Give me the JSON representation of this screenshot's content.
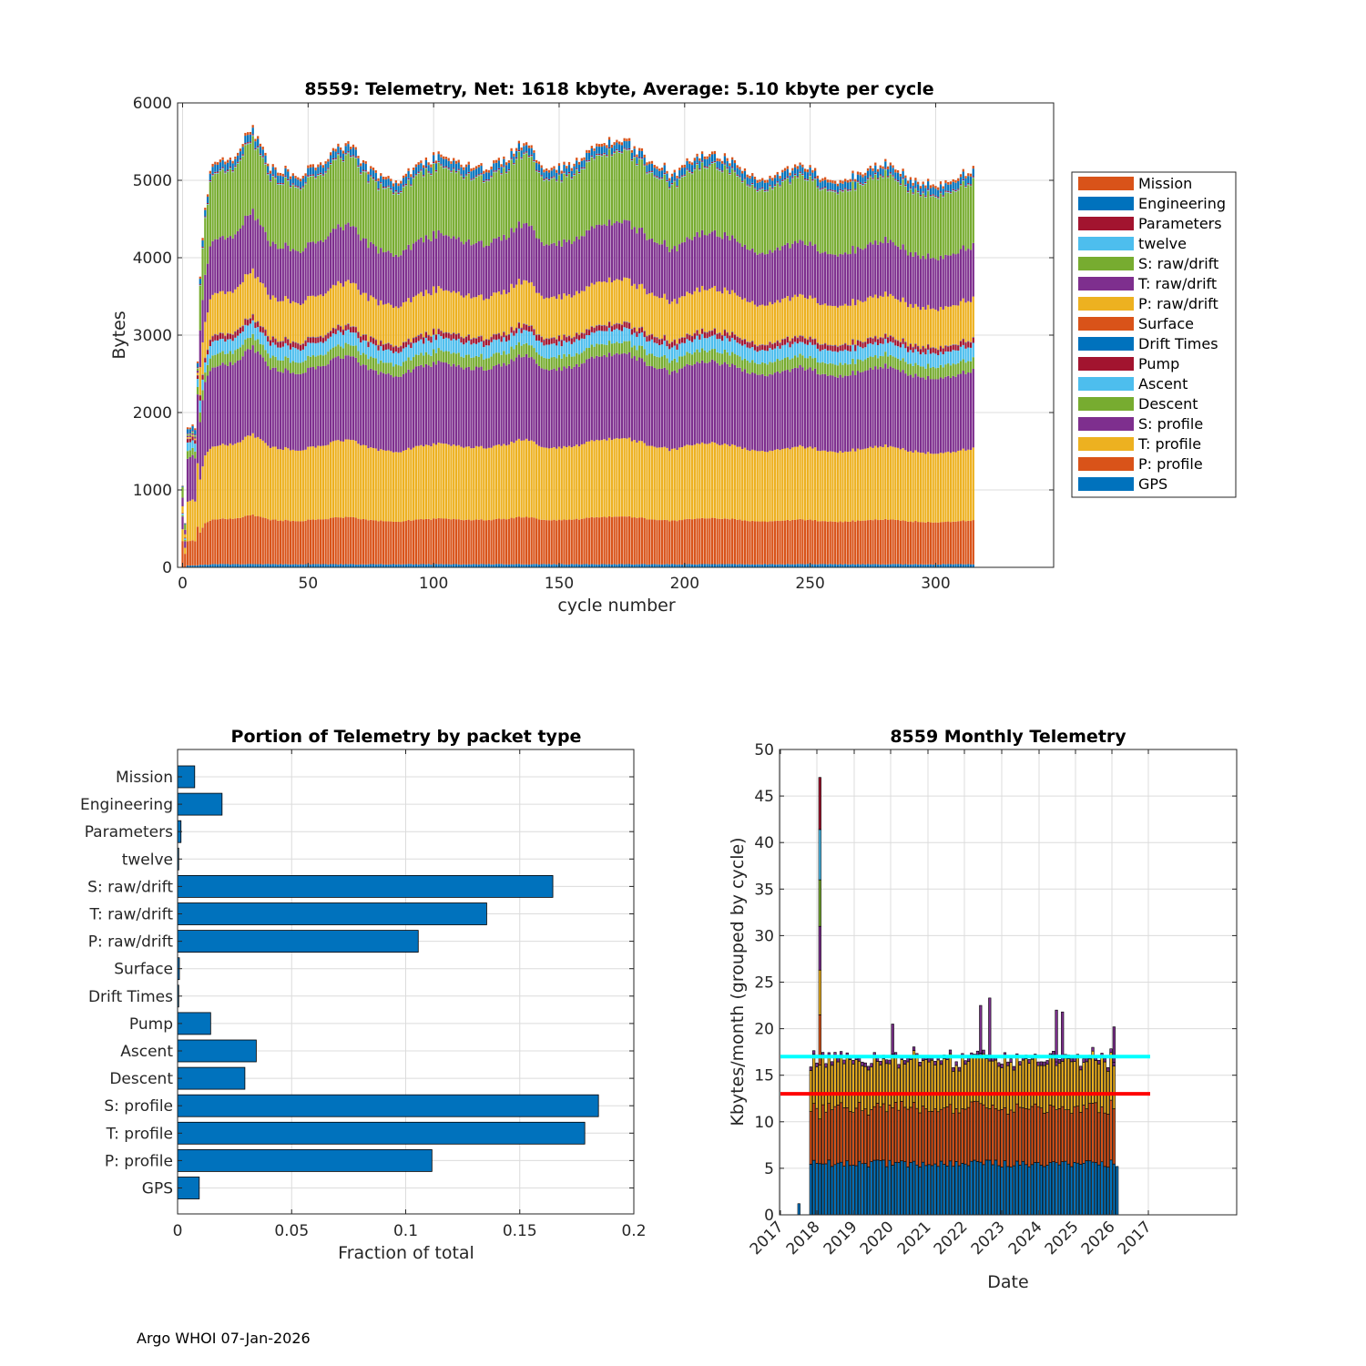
{
  "footer": "Argo WHOI 07-Jan-2026",
  "packet_types": [
    "Mission",
    "Engineering",
    "Parameters",
    "twelve",
    "S: raw/drift",
    "T: raw/drift",
    "P: raw/drift",
    "Surface",
    "Drift Times",
    "Pump",
    "Ascent",
    "Descent",
    "S: profile",
    "T: profile",
    "P: profile",
    "GPS"
  ],
  "packet_colors": [
    "#D95319",
    "#0072BD",
    "#A2142F",
    "#4DBEEE",
    "#77AC30",
    "#7E2F8E",
    "#EDB120",
    "#D95319",
    "#0072BD",
    "#A2142F",
    "#4DBEEE",
    "#77AC30",
    "#7E2F8E",
    "#EDB120",
    "#D95319",
    "#0072BD"
  ],
  "chart_data": [
    {
      "type": "bar",
      "stacked": true,
      "title": "8559: Telemetry, Net:   1618 kbyte,  Average: 5.10 kbyte per cycle",
      "xlabel": "cycle number",
      "ylabel": "Bytes",
      "xlim": [
        -2,
        347
      ],
      "ylim": [
        0,
        6000
      ],
      "xticks": [
        0,
        50,
        100,
        150,
        200,
        250,
        300
      ],
      "yticks": [
        0,
        1000,
        2000,
        3000,
        4000,
        5000,
        6000
      ],
      "n_cycles": 316,
      "legend_position": "outside-right",
      "stack_order_bottom_to_top": [
        "GPS",
        "P: profile",
        "T: profile",
        "S: profile",
        "Descent",
        "Ascent",
        "Pump",
        "Drift Times",
        "Surface",
        "P: raw/drift",
        "T: raw/drift",
        "S: raw/drift",
        "twelve",
        "Parameters",
        "Engineering",
        "Mission"
      ],
      "typical_segment_values": {
        "GPS": 40,
        "P: profile": 580,
        "T: profile": 950,
        "S: profile": 1030,
        "Descent": 150,
        "Ascent": 170,
        "Pump": 70,
        "Drift Times": 5,
        "Surface": 5,
        "P: raw/drift": 530,
        "T: raw/drift": 700,
        "S: raw/drift": 850,
        "twelve": 10,
        "Parameters": 15,
        "Engineering": 90,
        "Mission": 35
      },
      "total_profile_anchors": [
        [
          0,
          1150
        ],
        [
          1,
          530
        ],
        [
          2,
          1800
        ],
        [
          5,
          1800
        ],
        [
          7,
          3700
        ],
        [
          9,
          4650
        ],
        [
          12,
          5250
        ],
        [
          20,
          5300
        ],
        [
          28,
          5720
        ],
        [
          35,
          5200
        ],
        [
          45,
          5050
        ],
        [
          55,
          5200
        ],
        [
          62,
          5500
        ],
        [
          68,
          5450
        ],
        [
          75,
          5100
        ],
        [
          85,
          4950
        ],
        [
          95,
          5200
        ],
        [
          103,
          5350
        ],
        [
          113,
          5150
        ],
        [
          125,
          5200
        ],
        [
          137,
          5550
        ],
        [
          145,
          5100
        ],
        [
          155,
          5200
        ],
        [
          167,
          5520
        ],
        [
          176,
          5600
        ],
        [
          185,
          5300
        ],
        [
          195,
          5050
        ],
        [
          205,
          5380
        ],
        [
          215,
          5300
        ],
        [
          225,
          5100
        ],
        [
          235,
          5000
        ],
        [
          245,
          5200
        ],
        [
          252,
          5100
        ],
        [
          260,
          4950
        ],
        [
          268,
          5050
        ],
        [
          280,
          5250
        ],
        [
          290,
          5000
        ],
        [
          300,
          4900
        ],
        [
          308,
          5000
        ],
        [
          315,
          5100
        ]
      ]
    },
    {
      "type": "bar",
      "orientation": "horizontal",
      "title": "Portion of Telemetry by packet type",
      "xlabel": "Fraction of total",
      "xlim": [
        0,
        0.2
      ],
      "xticks": [
        0,
        0.05,
        0.1,
        0.15,
        0.2
      ],
      "xtick_labels": [
        "0",
        "0.05",
        "0.1",
        "0.15",
        "0.2"
      ],
      "categories": [
        "Mission",
        "Engineering",
        "Parameters",
        "twelve",
        "S: raw/drift",
        "T: raw/drift",
        "P: raw/drift",
        "Surface",
        "Drift Times",
        "Pump",
        "Ascent",
        "Descent",
        "S: profile",
        "T: profile",
        "P: profile",
        "GPS"
      ],
      "values": [
        0.0075,
        0.0195,
        0.0015,
        0.0005,
        0.1645,
        0.1355,
        0.1055,
        0.0008,
        0.0005,
        0.0145,
        0.0345,
        0.0295,
        0.1845,
        0.1785,
        0.1115,
        0.0095
      ],
      "color": "#0072BD"
    },
    {
      "type": "bar",
      "stacked": true,
      "title": "8559 Monthly Telemetry",
      "xlabel": "Date",
      "ylabel": "Kbytes/month (grouped by cycle)",
      "ylim": [
        0,
        50
      ],
      "yticks": [
        0,
        5,
        10,
        15,
        20,
        25,
        30,
        35,
        40,
        45,
        50
      ],
      "xtick_labels": [
        "2017",
        "2018",
        "2019",
        "2020",
        "2021",
        "2022",
        "2023",
        "2024",
        "2025",
        "2026",
        "2017"
      ],
      "months_start": "2017-10",
      "n_months": 103,
      "typical_month": {
        "GPS": 5.5,
        "profile": 6.0,
        "raw_drift": 5.0,
        "other": 0.4
      },
      "spike_months": [
        {
          "month": 4,
          "value": 47.0
        },
        {
          "month": 28,
          "value": 20.5
        },
        {
          "month": 57,
          "value": 22.5
        },
        {
          "month": 60,
          "value": 23.3
        },
        {
          "month": 82,
          "value": 22.0
        },
        {
          "month": 84,
          "value": 21.8
        },
        {
          "month": 101,
          "value": 20.2
        }
      ],
      "small_bar": {
        "month": 0,
        "value": 1.2
      },
      "reference_lines": [
        {
          "name": "upper",
          "value": 17.0,
          "color": "#00FFFF"
        },
        {
          "name": "lower",
          "value": 13.0,
          "color": "#FF0000"
        }
      ]
    }
  ]
}
